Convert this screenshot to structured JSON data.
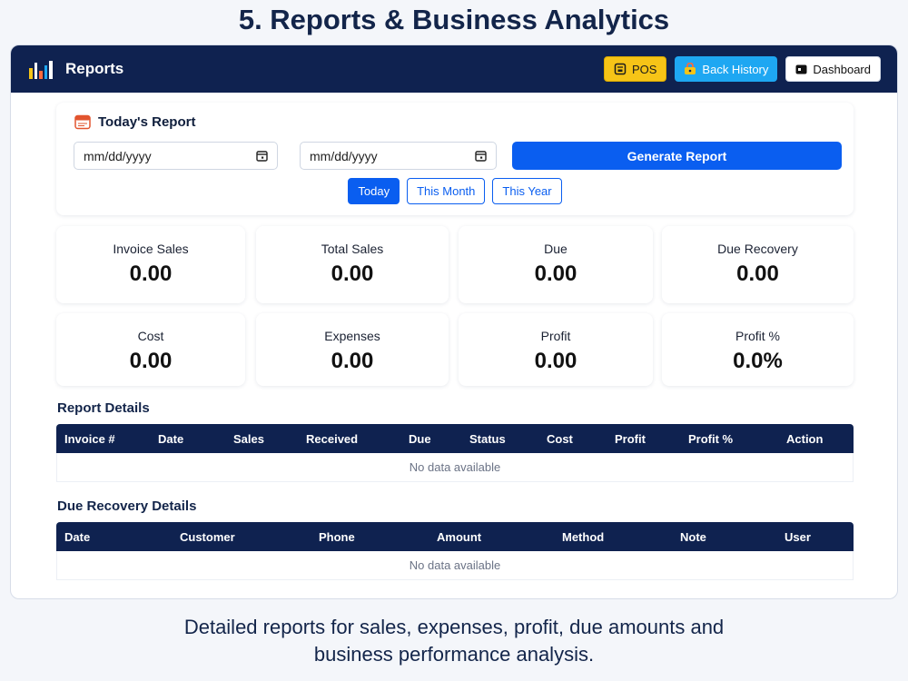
{
  "headline": "5. Reports & Business Analytics",
  "window": {
    "title": "Reports",
    "logo_icon": "bar-chart-icon",
    "actions": {
      "pos": "POS",
      "back_history": "Back History",
      "dashboard": "Dashboard"
    }
  },
  "report": {
    "title": "Today's Report",
    "from_placeholder": "mm/dd/yyyy",
    "to_placeholder": "mm/dd/yyyy",
    "generate_label": "Generate Report",
    "periods": [
      "Today",
      "This Month",
      "This Year"
    ],
    "active_period": "Today"
  },
  "stats": [
    {
      "label": "Invoice Sales",
      "value": "0.00"
    },
    {
      "label": "Total Sales",
      "value": "0.00"
    },
    {
      "label": "Due",
      "value": "0.00"
    },
    {
      "label": "Due Recovery",
      "value": "0.00"
    },
    {
      "label": "Cost",
      "value": "0.00"
    },
    {
      "label": "Expenses",
      "value": "0.00"
    },
    {
      "label": "Profit",
      "value": "0.00"
    },
    {
      "label": "Profit %",
      "value": "0.0%"
    }
  ],
  "report_details": {
    "title": "Report Details",
    "columns": [
      "Invoice #",
      "Date",
      "Sales",
      "Received",
      "Due",
      "Status",
      "Cost",
      "Profit",
      "Profit %",
      "Action"
    ],
    "empty_text": "No data available"
  },
  "due_recovery": {
    "title": "Due Recovery Details",
    "columns": [
      "Date",
      "Customer",
      "Phone",
      "Amount",
      "Method",
      "Note",
      "User"
    ],
    "empty_text": "No data available"
  },
  "caption_line1": "Detailed reports for sales, expenses, profit, due amounts and",
  "caption_line2": "business performance analysis.",
  "colors": {
    "navy": "#0f2250",
    "primary": "#0a5ef0",
    "pos_yellow": "#f6c417",
    "back_blue": "#1ea7f2"
  }
}
